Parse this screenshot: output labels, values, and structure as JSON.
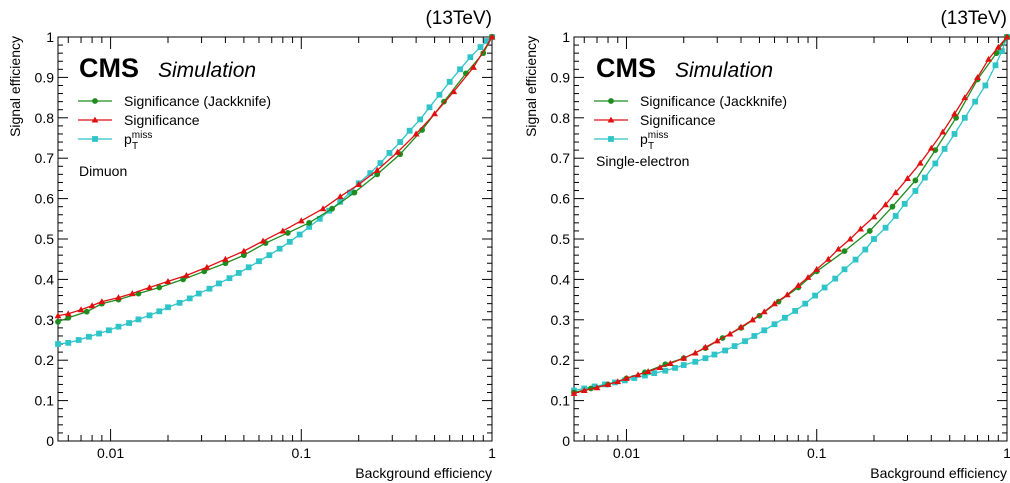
{
  "chart_data": [
    {
      "type": "line",
      "energy_label": "(13TeV)",
      "experiment": "CMS",
      "status": "Simulation",
      "channel": "Dimuon",
      "xlabel": "Background efficiency",
      "ylabel": "Signal efficiency",
      "xscale": "log",
      "xlim": [
        0.0053,
        1
      ],
      "ylim": [
        0,
        1
      ],
      "x_ticks": [
        {
          "v": 0.01,
          "label": "0.01"
        },
        {
          "v": 0.1,
          "label": "0.1"
        },
        {
          "v": 1,
          "label": "1"
        }
      ],
      "y_ticks": [
        {
          "v": 0,
          "label": "0"
        },
        {
          "v": 0.1,
          "label": "0.1"
        },
        {
          "v": 0.2,
          "label": "0.2"
        },
        {
          "v": 0.3,
          "label": "0.3"
        },
        {
          "v": 0.4,
          "label": "0.4"
        },
        {
          "v": 0.5,
          "label": "0.5"
        },
        {
          "v": 0.6,
          "label": "0.6"
        },
        {
          "v": 0.7,
          "label": "0.7"
        },
        {
          "v": 0.8,
          "label": "0.8"
        },
        {
          "v": 0.9,
          "label": "0.9"
        },
        {
          "v": 1,
          "label": "1"
        }
      ],
      "grid": false,
      "legend_position": "top-left",
      "series": [
        {
          "name": "Significance (Jackknife)",
          "color": "#1e8c1e",
          "marker": "circle",
          "x": [
            0.0053,
            0.006,
            0.0075,
            0.009,
            0.011,
            0.014,
            0.018,
            0.024,
            0.031,
            0.04,
            0.05,
            0.065,
            0.085,
            0.11,
            0.145,
            0.19,
            0.25,
            0.33,
            0.43,
            0.56,
            0.73,
            0.9,
            1.0
          ],
          "y": [
            0.295,
            0.305,
            0.32,
            0.34,
            0.35,
            0.365,
            0.38,
            0.4,
            0.42,
            0.44,
            0.46,
            0.49,
            0.515,
            0.54,
            0.575,
            0.615,
            0.66,
            0.71,
            0.77,
            0.84,
            0.91,
            0.96,
            1.0
          ]
        },
        {
          "name": "Significance",
          "color": "#e01010",
          "marker": "triangle",
          "x": [
            0.0053,
            0.006,
            0.007,
            0.008,
            0.009,
            0.011,
            0.013,
            0.016,
            0.02,
            0.025,
            0.032,
            0.04,
            0.05,
            0.063,
            0.08,
            0.1,
            0.13,
            0.16,
            0.2,
            0.25,
            0.32,
            0.4,
            0.5,
            0.63,
            0.8,
            1.0
          ],
          "y": [
            0.31,
            0.315,
            0.325,
            0.335,
            0.345,
            0.355,
            0.365,
            0.38,
            0.395,
            0.41,
            0.43,
            0.45,
            0.47,
            0.495,
            0.52,
            0.545,
            0.575,
            0.605,
            0.635,
            0.67,
            0.715,
            0.76,
            0.81,
            0.865,
            0.925,
            1.0
          ]
        },
        {
          "name": "p_T^miss",
          "color": "#2ec4c8",
          "marker": "square",
          "x": [
            0.0053,
            0.006,
            0.0068,
            0.0077,
            0.0087,
            0.0098,
            0.011,
            0.0125,
            0.014,
            0.016,
            0.018,
            0.02,
            0.023,
            0.026,
            0.029,
            0.033,
            0.037,
            0.042,
            0.047,
            0.053,
            0.06,
            0.068,
            0.077,
            0.087,
            0.098,
            0.11,
            0.125,
            0.14,
            0.16,
            0.18,
            0.2,
            0.23,
            0.26,
            0.29,
            0.33,
            0.37,
            0.42,
            0.47,
            0.53,
            0.6,
            0.68,
            0.77,
            0.87,
            0.94,
            1.0
          ],
          "y": [
            0.24,
            0.243,
            0.25,
            0.258,
            0.266,
            0.274,
            0.283,
            0.292,
            0.301,
            0.311,
            0.321,
            0.331,
            0.342,
            0.353,
            0.365,
            0.377,
            0.39,
            0.403,
            0.416,
            0.43,
            0.445,
            0.46,
            0.476,
            0.493,
            0.511,
            0.53,
            0.55,
            0.57,
            0.592,
            0.615,
            0.638,
            0.663,
            0.688,
            0.713,
            0.74,
            0.768,
            0.796,
            0.826,
            0.857,
            0.889,
            0.92,
            0.95,
            0.975,
            0.99,
            1.0
          ]
        }
      ]
    },
    {
      "type": "line",
      "energy_label": "(13TeV)",
      "experiment": "CMS",
      "status": "Simulation",
      "channel": "Single-electron",
      "xlabel": "Background efficiency",
      "ylabel": "Signal efficiency",
      "xscale": "log",
      "xlim": [
        0.0053,
        1
      ],
      "ylim": [
        0,
        1
      ],
      "x_ticks": [
        {
          "v": 0.01,
          "label": "0.01"
        },
        {
          "v": 0.1,
          "label": "0.1"
        },
        {
          "v": 1,
          "label": "1"
        }
      ],
      "y_ticks": [
        {
          "v": 0,
          "label": "0"
        },
        {
          "v": 0.1,
          "label": "0.1"
        },
        {
          "v": 0.2,
          "label": "0.2"
        },
        {
          "v": 0.3,
          "label": "0.3"
        },
        {
          "v": 0.4,
          "label": "0.4"
        },
        {
          "v": 0.5,
          "label": "0.5"
        },
        {
          "v": 0.6,
          "label": "0.6"
        },
        {
          "v": 0.7,
          "label": "0.7"
        },
        {
          "v": 0.8,
          "label": "0.8"
        },
        {
          "v": 0.9,
          "label": "0.9"
        },
        {
          "v": 1,
          "label": "1"
        }
      ],
      "grid": false,
      "legend_position": "top-left",
      "series": [
        {
          "name": "Significance (Jackknife)",
          "color": "#1e8c1e",
          "marker": "circle",
          "x": [
            0.0053,
            0.0065,
            0.008,
            0.01,
            0.0125,
            0.016,
            0.02,
            0.026,
            0.032,
            0.04,
            0.05,
            0.063,
            0.08,
            0.1,
            0.14,
            0.19,
            0.25,
            0.33,
            0.42,
            0.54,
            0.7,
            0.88,
            1.0
          ],
          "y": [
            0.12,
            0.13,
            0.14,
            0.155,
            0.17,
            0.19,
            0.205,
            0.23,
            0.255,
            0.28,
            0.31,
            0.345,
            0.38,
            0.42,
            0.47,
            0.52,
            0.58,
            0.645,
            0.72,
            0.8,
            0.895,
            0.96,
            1.0
          ]
        },
        {
          "name": "Significance",
          "color": "#e01010",
          "marker": "triangle",
          "x": [
            0.0053,
            0.006,
            0.007,
            0.008,
            0.009,
            0.01,
            0.0115,
            0.013,
            0.015,
            0.017,
            0.02,
            0.023,
            0.026,
            0.03,
            0.035,
            0.04,
            0.046,
            0.053,
            0.06,
            0.07,
            0.08,
            0.09,
            0.1,
            0.115,
            0.13,
            0.15,
            0.17,
            0.2,
            0.23,
            0.26,
            0.3,
            0.35,
            0.4,
            0.46,
            0.53,
            0.6,
            0.7,
            0.8,
            0.9,
            1.0
          ],
          "y": [
            0.118,
            0.125,
            0.132,
            0.14,
            0.147,
            0.155,
            0.164,
            0.172,
            0.182,
            0.192,
            0.205,
            0.218,
            0.232,
            0.248,
            0.265,
            0.282,
            0.3,
            0.32,
            0.34,
            0.362,
            0.385,
            0.405,
            0.425,
            0.45,
            0.475,
            0.5,
            0.525,
            0.555,
            0.585,
            0.615,
            0.65,
            0.688,
            0.725,
            0.765,
            0.81,
            0.85,
            0.9,
            0.945,
            0.975,
            1.0
          ]
        },
        {
          "name": "p_T^miss",
          "color": "#2ec4c8",
          "marker": "square",
          "x": [
            0.0053,
            0.006,
            0.0068,
            0.0077,
            0.0087,
            0.0098,
            0.011,
            0.0125,
            0.014,
            0.016,
            0.018,
            0.02,
            0.023,
            0.026,
            0.029,
            0.033,
            0.037,
            0.042,
            0.047,
            0.053,
            0.06,
            0.068,
            0.077,
            0.087,
            0.098,
            0.11,
            0.125,
            0.14,
            0.16,
            0.18,
            0.2,
            0.23,
            0.26,
            0.29,
            0.33,
            0.37,
            0.42,
            0.47,
            0.53,
            0.6,
            0.68,
            0.77,
            0.87,
            0.94,
            1.0
          ],
          "y": [
            0.125,
            0.13,
            0.135,
            0.14,
            0.145,
            0.15,
            0.156,
            0.162,
            0.168,
            0.174,
            0.181,
            0.188,
            0.196,
            0.205,
            0.214,
            0.224,
            0.235,
            0.247,
            0.26,
            0.274,
            0.289,
            0.305,
            0.322,
            0.34,
            0.36,
            0.38,
            0.402,
            0.425,
            0.449,
            0.474,
            0.5,
            0.528,
            0.557,
            0.587,
            0.619,
            0.652,
            0.687,
            0.723,
            0.76,
            0.8,
            0.84,
            0.88,
            0.93,
            0.965,
            1.0
          ]
        }
      ]
    }
  ]
}
